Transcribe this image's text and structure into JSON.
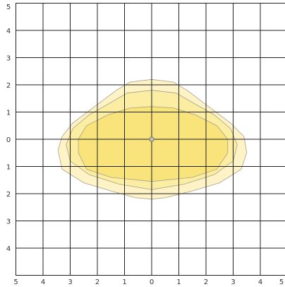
{
  "chart_data": {
    "type": "contour",
    "xlim": [
      -5,
      5
    ],
    "ylim": [
      -5,
      5
    ],
    "xticks": [
      {
        "value": -5,
        "label": "5"
      },
      {
        "value": -4,
        "label": "4"
      },
      {
        "value": -3,
        "label": "3"
      },
      {
        "value": -2,
        "label": "2"
      },
      {
        "value": -1,
        "label": "1"
      },
      0,
      1,
      2,
      3,
      4,
      5
    ],
    "yticks": [
      {
        "value": -4,
        "label": "4"
      },
      {
        "value": -3,
        "label": "3"
      },
      {
        "value": -2,
        "label": "2"
      },
      {
        "value": -1,
        "label": "1"
      },
      0,
      1,
      2,
      3,
      4,
      5
    ],
    "grid": true,
    "contours": [
      {
        "color": "#fdf3c6",
        "x": [
          0,
          0.8,
          1.3,
          2.1,
          2.9,
          3.4,
          3.5,
          3.3,
          2.5,
          1.5,
          0.5,
          0,
          -0.6,
          -1.5,
          -2.5,
          -3.3,
          -3.45,
          -3.3,
          -2.9,
          -2.1,
          -1.3,
          -0.8
        ],
        "y": [
          2.2,
          2.1,
          1.8,
          1.2,
          0.6,
          0.1,
          -0.5,
          -1.1,
          -1.6,
          -1.9,
          -2.15,
          -2.2,
          -2.15,
          -1.9,
          -1.6,
          -1.1,
          -0.4,
          0.1,
          0.6,
          1.2,
          1.8,
          2.1
        ]
      },
      {
        "color": "#fbeea2",
        "x": [
          0,
          0.9,
          1.5,
          2.3,
          2.9,
          3.15,
          3.0,
          2.3,
          1.2,
          0,
          -1.2,
          -2.3,
          -3.0,
          -3.15,
          -2.9,
          -2.3,
          -1.5,
          -0.9
        ],
        "y": [
          1.8,
          1.7,
          1.35,
          0.9,
          0.4,
          -0.2,
          -0.8,
          -1.3,
          -1.65,
          -1.85,
          -1.65,
          -1.3,
          -0.8,
          -0.2,
          0.4,
          0.9,
          1.35,
          1.7
        ]
      },
      {
        "color": "#f9e47c",
        "x": [
          0,
          0.8,
          1.6,
          2.4,
          2.8,
          2.8,
          2.4,
          1.5,
          0,
          -1.5,
          -2.4,
          -2.7,
          -2.7,
          -2.4,
          -1.6,
          -0.8
        ],
        "y": [
          1.2,
          1.15,
          0.9,
          0.5,
          0,
          -0.5,
          -1.1,
          -1.4,
          -1.55,
          -1.4,
          -1.1,
          -0.5,
          0,
          0.5,
          0.9,
          1.15
        ]
      }
    ],
    "center": {
      "x": 0,
      "y": 0
    }
  }
}
